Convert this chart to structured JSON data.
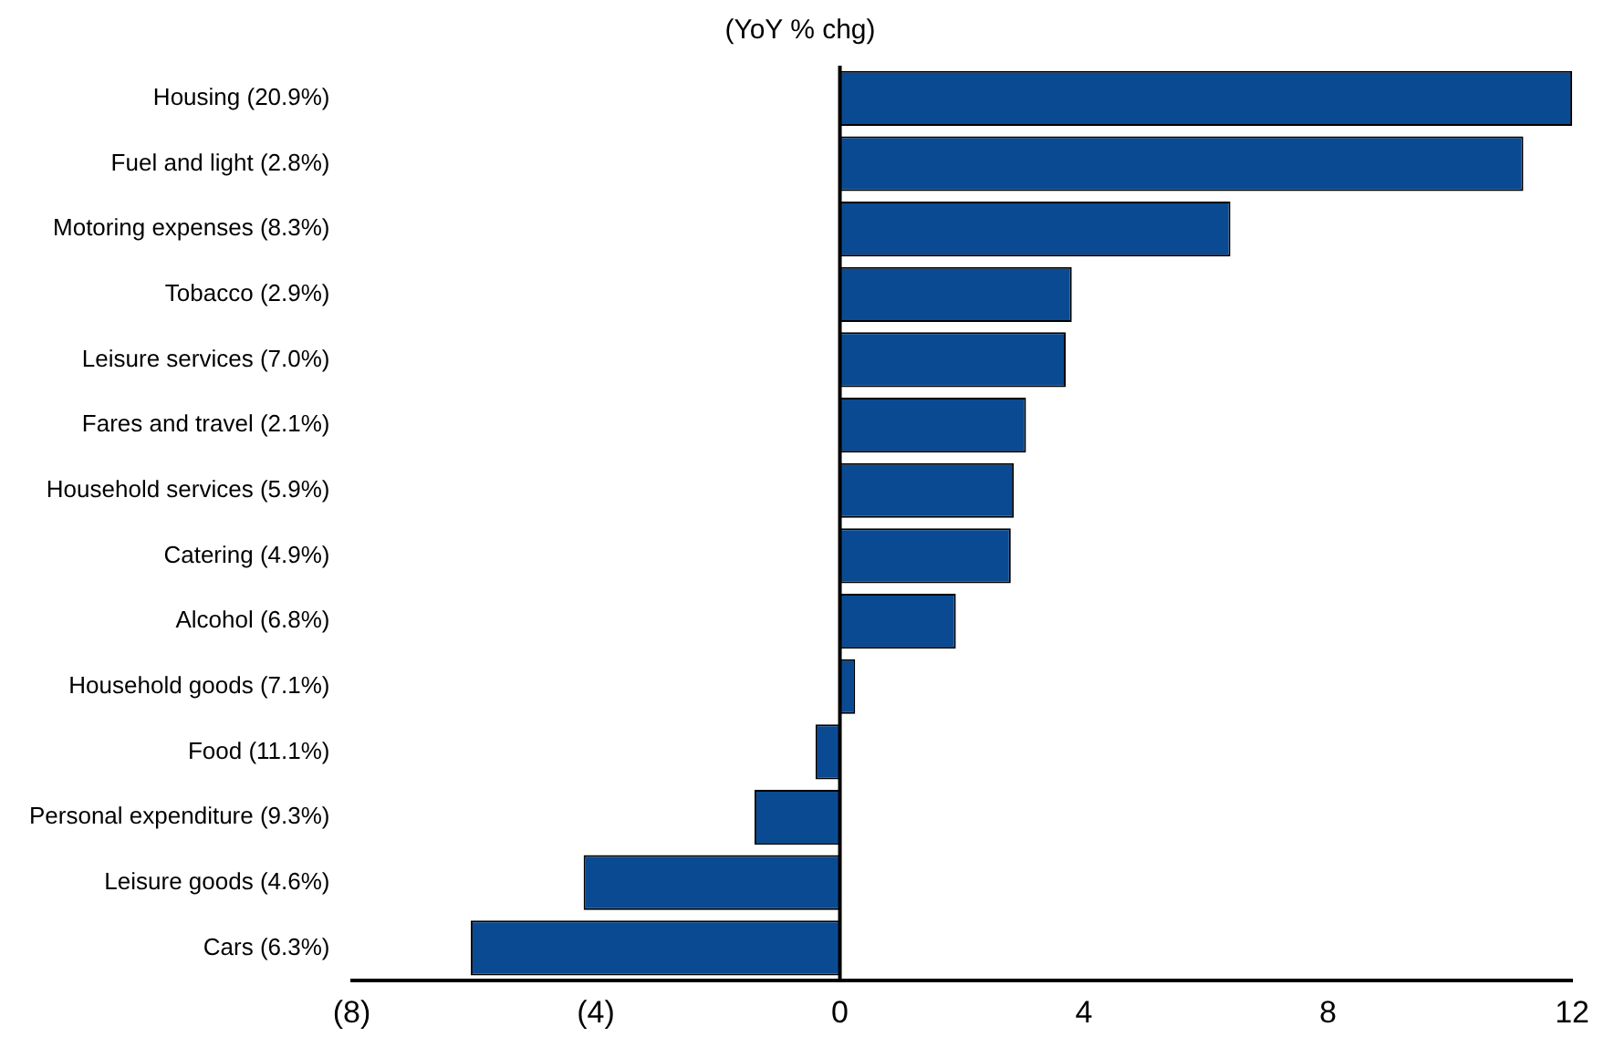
{
  "chart_data": {
    "type": "bar",
    "orientation": "horizontal",
    "title": "(YoY % chg)",
    "categories": [
      "Housing (20.9%)",
      "Fuel and light (2.8%)",
      "Motoring expenses (8.3%)",
      "Tobacco (2.9%)",
      "Leisure services (7.0%)",
      "Fares and travel (2.1%)",
      "Household services (5.9%)",
      "Catering (4.9%)",
      "Alcohol (6.8%)",
      "Household goods (7.1%)",
      "Food (11.1%)",
      "Personal expenditure (9.3%)",
      "Leisure goods (4.6%)",
      "Cars (6.3%)"
    ],
    "values": [
      12.0,
      11.2,
      6.4,
      3.8,
      3.7,
      3.05,
      2.85,
      2.8,
      1.9,
      0.25,
      -0.4,
      -1.4,
      -4.2,
      -6.05
    ],
    "color": "#0a4a93",
    "xlim": [
      -8,
      12
    ],
    "xticks": [
      {
        "value": -8,
        "label": "(8)"
      },
      {
        "value": -4,
        "label": "(4)"
      },
      0,
      4,
      8,
      12
    ],
    "ref_lines": [
      {
        "axis": "x",
        "value": 0,
        "color": "#000000"
      }
    ],
    "legend": false
  }
}
